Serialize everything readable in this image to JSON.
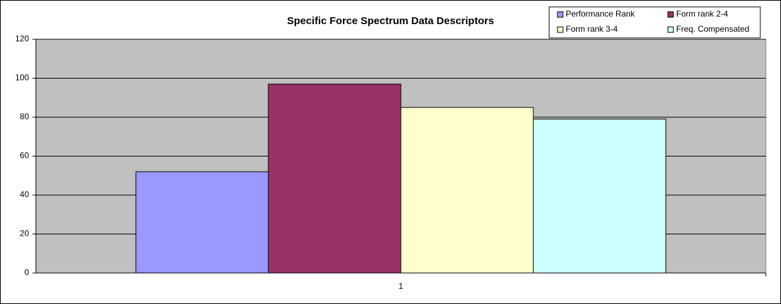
{
  "chart_data": {
    "type": "bar",
    "title": "Specific Force Spectrum Data Descriptors",
    "categories": [
      "1"
    ],
    "series": [
      {
        "name": "Performance Rank",
        "color": "#9999ff",
        "values": [
          52
        ]
      },
      {
        "name": "Form rank 2-4",
        "color": "#993366",
        "values": [
          97
        ]
      },
      {
        "name": "Form rank 3-4",
        "color": "#ffffcc",
        "values": [
          85
        ]
      },
      {
        "name": "Freq. Compensated",
        "color": "#ccffff",
        "values": [
          79
        ]
      }
    ],
    "ylim": [
      0,
      120
    ],
    "yticks": [
      0,
      20,
      40,
      60,
      80,
      100,
      120
    ],
    "grid": true,
    "legend": "top-right",
    "plot_background": "#c0c0c0"
  }
}
